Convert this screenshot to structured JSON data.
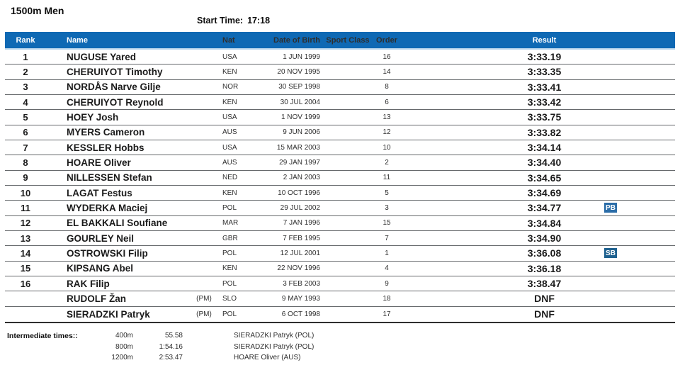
{
  "page": {
    "title": "1500m Men",
    "start_time_label": "Start Time:",
    "start_time_value": "17:18"
  },
  "colors": {
    "header_bg": "#0f69b4",
    "header_underline": "#b9d5ec",
    "badge_pb": "#2b6da8",
    "badge_sb": "#1f618f"
  },
  "table": {
    "columns": [
      "Rank",
      "Name",
      "Nat",
      "Date of Birth",
      "Sport Class",
      "Order",
      "Result"
    ],
    "rows": [
      {
        "rank": "1",
        "name": "NUGUSE Yared",
        "pm": "",
        "nat": "USA",
        "dob": "1 JUN 1999",
        "sport_class": "",
        "order": "16",
        "result": "3:33.19",
        "badge": ""
      },
      {
        "rank": "2",
        "name": "CHERUIYOT Timothy",
        "pm": "",
        "nat": "KEN",
        "dob": "20 NOV 1995",
        "sport_class": "",
        "order": "14",
        "result": "3:33.35",
        "badge": ""
      },
      {
        "rank": "3",
        "name": "NORDÅS Narve Gilje",
        "pm": "",
        "nat": "NOR",
        "dob": "30 SEP 1998",
        "sport_class": "",
        "order": "8",
        "result": "3:33.41",
        "badge": ""
      },
      {
        "rank": "4",
        "name": "CHERUIYOT Reynold",
        "pm": "",
        "nat": "KEN",
        "dob": "30 JUL 2004",
        "sport_class": "",
        "order": "6",
        "result": "3:33.42",
        "badge": ""
      },
      {
        "rank": "5",
        "name": "HOEY Josh",
        "pm": "",
        "nat": "USA",
        "dob": "1 NOV 1999",
        "sport_class": "",
        "order": "13",
        "result": "3:33.75",
        "badge": ""
      },
      {
        "rank": "6",
        "name": "MYERS Cameron",
        "pm": "",
        "nat": "AUS",
        "dob": "9 JUN 2006",
        "sport_class": "",
        "order": "12",
        "result": "3:33.82",
        "badge": ""
      },
      {
        "rank": "7",
        "name": "KESSLER Hobbs",
        "pm": "",
        "nat": "USA",
        "dob": "15 MAR 2003",
        "sport_class": "",
        "order": "10",
        "result": "3:34.14",
        "badge": ""
      },
      {
        "rank": "8",
        "name": "HOARE Oliver",
        "pm": "",
        "nat": "AUS",
        "dob": "29 JAN 1997",
        "sport_class": "",
        "order": "2",
        "result": "3:34.40",
        "badge": ""
      },
      {
        "rank": "9",
        "name": "NILLESSEN Stefan",
        "pm": "",
        "nat": "NED",
        "dob": "2 JAN 2003",
        "sport_class": "",
        "order": "11",
        "result": "3:34.65",
        "badge": ""
      },
      {
        "rank": "10",
        "name": "LAGAT Festus",
        "pm": "",
        "nat": "KEN",
        "dob": "10 OCT 1996",
        "sport_class": "",
        "order": "5",
        "result": "3:34.69",
        "badge": ""
      },
      {
        "rank": "11",
        "name": "WYDERKA Maciej",
        "pm": "",
        "nat": "POL",
        "dob": "29 JUL 2002",
        "sport_class": "",
        "order": "3",
        "result": "3:34.77",
        "badge": "PB"
      },
      {
        "rank": "12",
        "name": "EL BAKKALI Soufiane",
        "pm": "",
        "nat": "MAR",
        "dob": "7 JAN 1996",
        "sport_class": "",
        "order": "15",
        "result": "3:34.84",
        "badge": ""
      },
      {
        "rank": "13",
        "name": "GOURLEY Neil",
        "pm": "",
        "nat": "GBR",
        "dob": "7 FEB 1995",
        "sport_class": "",
        "order": "7",
        "result": "3:34.90",
        "badge": ""
      },
      {
        "rank": "14",
        "name": "OSTROWSKI Filip",
        "pm": "",
        "nat": "POL",
        "dob": "12 JUL 2001",
        "sport_class": "",
        "order": "1",
        "result": "3:36.08",
        "badge": "SB"
      },
      {
        "rank": "15",
        "name": "KIPSANG Abel",
        "pm": "",
        "nat": "KEN",
        "dob": "22 NOV 1996",
        "sport_class": "",
        "order": "4",
        "result": "3:36.18",
        "badge": ""
      },
      {
        "rank": "16",
        "name": "RAK Filip",
        "pm": "",
        "nat": "POL",
        "dob": "3 FEB 2003",
        "sport_class": "",
        "order": "9",
        "result": "3:38.47",
        "badge": ""
      },
      {
        "rank": "",
        "name": "RUDOLF Žan",
        "pm": "(PM)",
        "nat": "SLO",
        "dob": "9 MAY 1993",
        "sport_class": "",
        "order": "18",
        "result": "DNF",
        "badge": ""
      },
      {
        "rank": "",
        "name": "SIERADZKI Patryk",
        "pm": "(PM)",
        "nat": "POL",
        "dob": "6 OCT 1998",
        "sport_class": "",
        "order": "17",
        "result": "DNF",
        "badge": ""
      }
    ]
  },
  "intermediate": {
    "label": "Intermediate times::",
    "splits": [
      {
        "distance": "400m",
        "time": "55.58",
        "athlete": "SIERADZKI Patryk (POL)"
      },
      {
        "distance": "800m",
        "time": "1:54.16",
        "athlete": "SIERADZKI Patryk (POL)"
      },
      {
        "distance": "1200m",
        "time": "2:53.47",
        "athlete": "HOARE Oliver (AUS)"
      }
    ]
  }
}
